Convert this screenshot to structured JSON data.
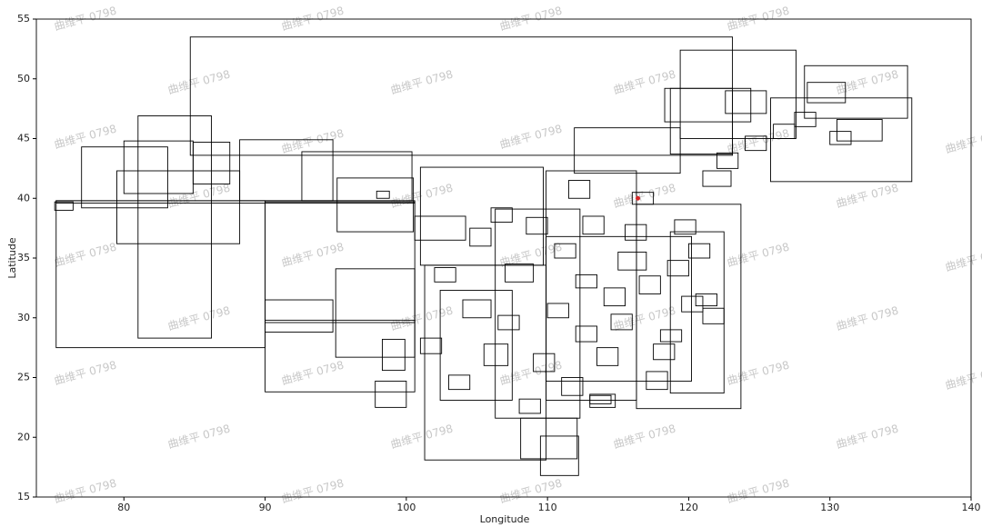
{
  "chart_data": {
    "type": "boxes",
    "xlabel": "Longitude",
    "ylabel": "Latitude",
    "watermark": "曲维平 0798",
    "xlim": [
      73.8,
      140
    ],
    "ylim": [
      15,
      55
    ],
    "xticks": [
      80,
      90,
      100,
      110,
      120,
      130,
      140
    ],
    "yticks": [
      15,
      20,
      25,
      30,
      35,
      40,
      45,
      50,
      55
    ],
    "grid": false,
    "color": "#000000",
    "boxes": [
      {
        "x": [
          84.7,
          123.1
        ],
        "y": [
          43.6,
          53.5
        ]
      },
      {
        "x": [
          75.2,
          90.0
        ],
        "y": [
          27.5,
          39.8
        ]
      },
      {
        "x": [
          81.0,
          86.2
        ],
        "y": [
          28.3,
          46.9
        ]
      },
      {
        "x": [
          79.5,
          88.2
        ],
        "y": [
          36.2,
          42.3
        ]
      },
      {
        "x": [
          77.0,
          83.1
        ],
        "y": [
          39.2,
          44.3
        ]
      },
      {
        "x": [
          88.2,
          94.8
        ],
        "y": [
          39.8,
          44.9
        ]
      },
      {
        "x": [
          90.0,
          100.6
        ],
        "y": [
          23.8,
          39.7
        ]
      },
      {
        "x": [
          92.6,
          100.4
        ],
        "y": [
          39.8,
          43.9
        ]
      },
      {
        "x": [
          95.1,
          100.5
        ],
        "y": [
          37.2,
          41.7
        ]
      },
      {
        "x": [
          95.0,
          100.6
        ],
        "y": [
          26.7,
          34.1
        ]
      },
      {
        "x": [
          90.0,
          94.8
        ],
        "y": [
          28.8,
          31.5
        ]
      },
      {
        "x": [
          101.0,
          109.7
        ],
        "y": [
          34.4,
          42.6
        ]
      },
      {
        "x": [
          101.3,
          109.9
        ],
        "y": [
          18.1,
          34.4
        ]
      },
      {
        "x": [
          111.9,
          119.4
        ],
        "y": [
          42.1,
          45.9
        ]
      },
      {
        "x": [
          118.7,
          123.1
        ],
        "y": [
          43.7,
          49.2
        ]
      },
      {
        "x": [
          119.4,
          127.6
        ],
        "y": [
          45.0,
          52.4
        ]
      },
      {
        "x": [
          128.2,
          135.5
        ],
        "y": [
          46.7,
          51.1
        ]
      },
      {
        "x": [
          125.8,
          135.8
        ],
        "y": [
          41.4,
          48.4
        ]
      },
      {
        "x": [
          118.3,
          124.4
        ],
        "y": [
          46.4,
          49.2
        ]
      },
      {
        "x": [
          109.9,
          116.3
        ],
        "y": [
          23.1,
          42.3
        ]
      },
      {
        "x": [
          106.3,
          112.3
        ],
        "y": [
          21.6,
          39.1
        ]
      },
      {
        "x": [
          116.3,
          123.7
        ],
        "y": [
          22.4,
          39.5
        ]
      },
      {
        "x": [
          118.7,
          122.5
        ],
        "y": [
          23.7,
          37.2
        ]
      },
      {
        "x": [
          102.4,
          107.5
        ],
        "y": [
          23.1,
          32.3
        ]
      },
      {
        "x": [
          109.9,
          120.2
        ],
        "y": [
          24.7,
          36.8
        ]
      },
      {
        "x": [
          108.1,
          112.1
        ],
        "y": [
          18.2,
          21.6
        ]
      },
      {
        "x": [
          109.5,
          112.2
        ],
        "y": [
          16.8,
          20.1
        ]
      },
      {
        "x": [
          75.1,
          76.4
        ],
        "y": [
          39.0,
          39.7
        ]
      },
      {
        "x": [
          100.6,
          104.2
        ],
        "y": [
          36.5,
          38.5
        ]
      },
      {
        "x": [
          98.3,
          99.9
        ],
        "y": [
          25.6,
          28.2
        ]
      },
      {
        "x": [
          97.8,
          100.0
        ],
        "y": [
          22.5,
          24.7
        ]
      },
      {
        "x": [
          122.6,
          125.5
        ],
        "y": [
          47.1,
          49.0
        ]
      },
      {
        "x": [
          128.4,
          131.1
        ],
        "y": [
          48.0,
          49.7
        ]
      },
      {
        "x": [
          130.5,
          133.7
        ],
        "y": [
          44.8,
          46.6
        ]
      },
      {
        "x": [
          84.9,
          87.5
        ],
        "y": [
          41.2,
          44.7
        ]
      },
      {
        "x": [
          80.0,
          84.9
        ],
        "y": [
          40.4,
          44.8
        ]
      },
      {
        "x": [
          104,
          106
        ],
        "y": [
          30,
          31.5
        ]
      },
      {
        "x": [
          105.5,
          107.2
        ],
        "y": [
          26,
          27.8
        ]
      },
      {
        "x": [
          107,
          109
        ],
        "y": [
          33,
          34.5
        ]
      },
      {
        "x": [
          110.5,
          112
        ],
        "y": [
          35,
          36.2
        ]
      },
      {
        "x": [
          112,
          113.5
        ],
        "y": [
          28,
          29.3
        ]
      },
      {
        "x": [
          113,
          114.8
        ],
        "y": [
          22.5,
          23.6
        ]
      },
      {
        "x": [
          114,
          115.5
        ],
        "y": [
          31,
          32.5
        ]
      },
      {
        "x": [
          115,
          117
        ],
        "y": [
          34,
          35.5
        ]
      },
      {
        "x": [
          116,
          117.5
        ],
        "y": [
          39.5,
          40.5
        ]
      },
      {
        "x": [
          117,
          118.5
        ],
        "y": [
          24,
          25.5
        ]
      },
      {
        "x": [
          118,
          119.5
        ],
        "y": [
          28,
          29
        ]
      },
      {
        "x": [
          119.5,
          121
        ],
        "y": [
          30.5,
          31.8
        ]
      },
      {
        "x": [
          120.5,
          122
        ],
        "y": [
          31,
          32
        ]
      },
      {
        "x": [
          121,
          122.5
        ],
        "y": [
          29.5,
          30.8
        ]
      },
      {
        "x": [
          103,
          104.5
        ],
        "y": [
          24,
          25.2
        ]
      },
      {
        "x": [
          104.5,
          106
        ],
        "y": [
          36,
          37.5
        ]
      },
      {
        "x": [
          106,
          107.5
        ],
        "y": [
          38,
          39.2
        ]
      },
      {
        "x": [
          108,
          109.5
        ],
        "y": [
          22,
          23.2
        ]
      },
      {
        "x": [
          109,
          110.5
        ],
        "y": [
          25.5,
          27
        ]
      },
      {
        "x": [
          110,
          111.5
        ],
        "y": [
          30,
          31.2
        ]
      },
      {
        "x": [
          111,
          112.5
        ],
        "y": [
          23.5,
          25
        ]
      },
      {
        "x": [
          112.5,
          114
        ],
        "y": [
          37,
          38.5
        ]
      },
      {
        "x": [
          113.5,
          115
        ],
        "y": [
          26,
          27.5
        ]
      },
      {
        "x": [
          114.5,
          116
        ],
        "y": [
          29,
          30.3
        ]
      },
      {
        "x": [
          115.5,
          117
        ],
        "y": [
          36.5,
          37.8
        ]
      },
      {
        "x": [
          116.5,
          118
        ],
        "y": [
          32,
          33.5
        ]
      },
      {
        "x": [
          117.5,
          119
        ],
        "y": [
          26.5,
          27.8
        ]
      },
      {
        "x": [
          118.5,
          120
        ],
        "y": [
          33.5,
          34.8
        ]
      },
      {
        "x": [
          119,
          120.5
        ],
        "y": [
          37,
          38.2
        ]
      },
      {
        "x": [
          120,
          121.5
        ],
        "y": [
          35,
          36.2
        ]
      },
      {
        "x": [
          121,
          123
        ],
        "y": [
          41,
          42.3
        ]
      },
      {
        "x": [
          122,
          123.5
        ],
        "y": [
          42.5,
          43.8
        ]
      },
      {
        "x": [
          124,
          125.5
        ],
        "y": [
          44,
          45.2
        ]
      },
      {
        "x": [
          126,
          127.5
        ],
        "y": [
          45,
          46.2
        ]
      },
      {
        "x": [
          127.5,
          129
        ],
        "y": [
          46,
          47.2
        ]
      },
      {
        "x": [
          130,
          131.5
        ],
        "y": [
          44.5,
          45.6
        ]
      },
      {
        "x": [
          101,
          102.5
        ],
        "y": [
          27,
          28.3
        ]
      },
      {
        "x": [
          102,
          103.5
        ],
        "y": [
          33,
          34.2
        ]
      },
      {
        "x": [
          106.5,
          108
        ],
        "y": [
          29,
          30.2
        ]
      },
      {
        "x": [
          108.5,
          110
        ],
        "y": [
          37,
          38.4
        ]
      },
      {
        "x": [
          111.5,
          113
        ],
        "y": [
          40,
          41.5
        ]
      },
      {
        "x": [
          112,
          113.5
        ],
        "y": [
          32.5,
          33.6
        ]
      },
      {
        "x": [
          113,
          114.5
        ],
        "y": [
          22.8,
          23.5
        ]
      },
      {
        "x": [
          97.9,
          98.8
        ],
        "y": [
          40,
          40.6
        ]
      },
      {
        "x": [
          90.0,
          100.6
        ],
        "y": [
          29.6,
          29.8
        ]
      },
      {
        "x": [
          75.2,
          100.6
        ],
        "y": [
          39.6,
          39.8
        ]
      }
    ],
    "highlight": {
      "x": 116.4,
      "y": 40.0,
      "color": "#d62728"
    }
  }
}
